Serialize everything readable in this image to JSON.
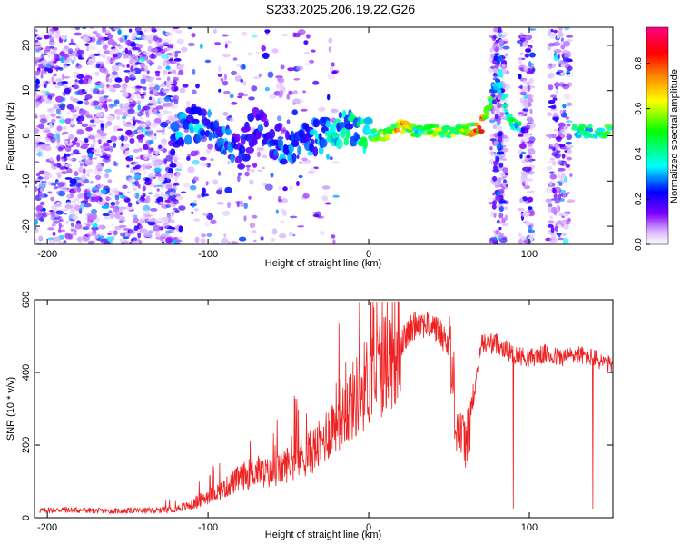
{
  "figure": {
    "title": "S233.2025.206.19.22.G26"
  },
  "chart_data": [
    {
      "type": "heatmap",
      "xlabel": "Height of straight line (km)",
      "ylabel": "Frequency (Hz)",
      "xlim": [
        -208,
        152
      ],
      "ylim": [
        -24,
        24
      ],
      "x_ticks": [
        -200,
        -100,
        0,
        100
      ],
      "y_ticks": [
        -20,
        -10,
        0,
        10,
        20
      ],
      "colorbar": {
        "label": "Normalized spectral amplitude",
        "ticks": [
          0.0,
          0.2,
          0.4,
          0.6,
          0.8
        ],
        "range": [
          0,
          0.96
        ],
        "colors": [
          "#ffffff",
          "#d9b3ff",
          "#8000ff",
          "#0000ff",
          "#00ffff",
          "#00ff00",
          "#ffff00",
          "#ff8000",
          "#ff0000",
          "#ff0080"
        ]
      },
      "ridge": [
        {
          "x": -120,
          "y": 0,
          "amp": 0.3
        },
        {
          "x": -110,
          "y": 3,
          "amp": 0.35
        },
        {
          "x": -100,
          "y": 2,
          "amp": 0.3
        },
        {
          "x": -90,
          "y": -1,
          "amp": 0.3
        },
        {
          "x": -80,
          "y": -4,
          "amp": 0.25
        },
        {
          "x": -70,
          "y": 3,
          "amp": 0.25
        },
        {
          "x": -60,
          "y": -1,
          "amp": 0.3
        },
        {
          "x": -50,
          "y": -3,
          "amp": 0.3
        },
        {
          "x": -40,
          "y": -1,
          "amp": 0.3
        },
        {
          "x": -30,
          "y": 0,
          "amp": 0.35
        },
        {
          "x": -20,
          "y": 1,
          "amp": 0.4
        },
        {
          "x": -10,
          "y": 2,
          "amp": 0.4
        },
        {
          "x": 0,
          "y": 0,
          "amp": 0.5
        },
        {
          "x": 10,
          "y": 0,
          "amp": 0.7
        },
        {
          "x": 20,
          "y": 2,
          "amp": 0.75
        },
        {
          "x": 30,
          "y": 1,
          "amp": 0.55
        },
        {
          "x": 40,
          "y": 1,
          "amp": 0.6
        },
        {
          "x": 50,
          "y": 1,
          "amp": 0.6
        },
        {
          "x": 60,
          "y": 1,
          "amp": 0.65
        },
        {
          "x": 70,
          "y": 2,
          "amp": 0.85
        },
        {
          "x": 80,
          "y": 12,
          "amp": 0.3
        },
        {
          "x": 90,
          "y": 2,
          "amp": 0.5
        },
        {
          "x": 130,
          "y": 1,
          "amp": 0.5
        },
        {
          "x": 145,
          "y": 1,
          "amp": 0.55
        }
      ]
    },
    {
      "type": "line",
      "xlabel": "Height of straight line (km)",
      "ylabel": "SNR (10 * v/v)",
      "xlim": [
        -208,
        152
      ],
      "ylim": [
        0,
        600
      ],
      "x_ticks": [
        -200,
        -100,
        0,
        100
      ],
      "y_ticks": [
        0,
        200,
        400,
        600
      ],
      "series": [
        {
          "color": "#ee2222",
          "x": [
            -205,
            -190,
            -175,
            -160,
            -145,
            -130,
            -120,
            -110,
            -100,
            -90,
            -80,
            -70,
            -60,
            -50,
            -40,
            -30,
            -20,
            -10,
            0,
            10,
            20,
            30,
            40,
            50,
            55,
            60,
            65,
            70,
            80,
            90,
            100,
            110,
            120,
            130,
            140,
            150
          ],
          "y": [
            20,
            22,
            20,
            18,
            20,
            20,
            25,
            35,
            60,
            80,
            110,
            130,
            120,
            150,
            170,
            200,
            280,
            320,
            380,
            430,
            480,
            540,
            530,
            480,
            260,
            200,
            310,
            480,
            480,
            450,
            440,
            450,
            440,
            450,
            440,
            420
          ]
        }
      ]
    }
  ]
}
